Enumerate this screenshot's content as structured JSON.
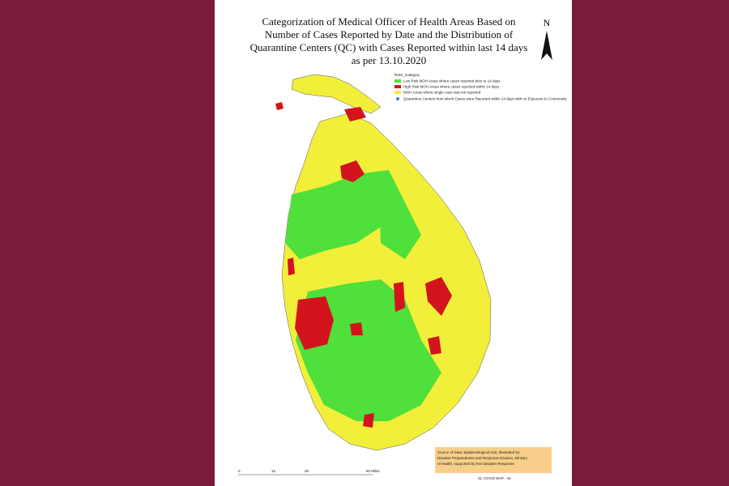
{
  "header": {
    "title_lines": [
      "Categorization of Medical Officer of Health Areas Based on",
      "Number of Cases Reported by Date and the Distribution of",
      "Quarantine Centers (QC) with Cases Reported within last 14 days",
      "as per 13.10.2020"
    ],
    "north": "N"
  },
  "legend": {
    "title": "RISK_Category",
    "items": [
      "Low Risk MOH Areas where cases reported prior to 14 days",
      "High Risk MOH Areas where cases reported within 14 days",
      "MOH Areas where single case was not reported",
      "Quarantine Centers from which Cases were Reported within 14 days with no Exposure to Community"
    ]
  },
  "source": {
    "lines": [
      "Source of Data: Epidemiological Unit, Illustrated by:",
      "Disaster Preparedness and Response Division, Ministry",
      "of Health, supported by Esri Disaster Response."
    ]
  },
  "scale": {
    "labels": [
      "0",
      "15",
      "30",
      "60 Miles"
    ]
  },
  "footer": {
    "map_id": "SL COVID MAP - 16"
  }
}
